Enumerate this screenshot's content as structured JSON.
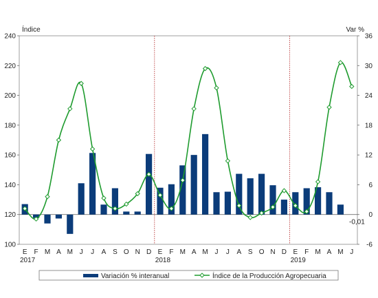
{
  "chart_data": {
    "type": "bar",
    "left_axis_label": "Índice",
    "right_axis_label": "Var %",
    "left_ticks": [
      100,
      120,
      140,
      160,
      180,
      200,
      220,
      240
    ],
    "left_ylim": [
      100,
      240
    ],
    "right_ticks": [
      -6,
      0,
      6,
      12,
      18,
      24,
      30,
      36
    ],
    "right_ylim": [
      -6,
      36
    ],
    "months": [
      "E",
      "F",
      "M",
      "A",
      "M",
      "J",
      "J",
      "A",
      "S",
      "O",
      "N",
      "D",
      "E",
      "F",
      "M",
      "A",
      "M",
      "J",
      "J",
      "A",
      "S",
      "O",
      "N",
      "D",
      "E",
      "F",
      "M",
      "A",
      "M",
      "J"
    ],
    "years": [
      {
        "label": "2017",
        "index": 0
      },
      {
        "label": "2018",
        "index": 12
      },
      {
        "label": "2019",
        "index": 24
      }
    ],
    "annotation": "-0,01",
    "series": [
      {
        "name": "Variación % interanual",
        "kind": "bar",
        "color": "#0b3c7a",
        "axis": "right",
        "values": [
          2.1,
          -0.7,
          -1.8,
          -0.8,
          -3.9,
          6.3,
          12.4,
          2.0,
          5.3,
          0.6,
          0.6,
          12.2,
          5.4,
          6.1,
          9.9,
          12.0,
          16.2,
          4.5,
          4.6,
          8.2,
          7.3,
          8.2,
          5.9,
          3.0,
          4.5,
          5.3,
          5.5,
          4.5,
          2.0,
          null
        ]
      },
      {
        "name": "Índice de la Producción Agropecuaria",
        "kind": "line",
        "color": "#1e9b2e",
        "axis": "left",
        "values": [
          124,
          117,
          132,
          170,
          191,
          208,
          164,
          131,
          124,
          127,
          134,
          147,
          133,
          124,
          143,
          191,
          218,
          205,
          156,
          126,
          118,
          121,
          125,
          136,
          126,
          122,
          142,
          192,
          222,
          206
        ]
      }
    ],
    "separator_lines_before_index": [
      12,
      24
    ],
    "grid": false,
    "legend_position": "bottom"
  }
}
